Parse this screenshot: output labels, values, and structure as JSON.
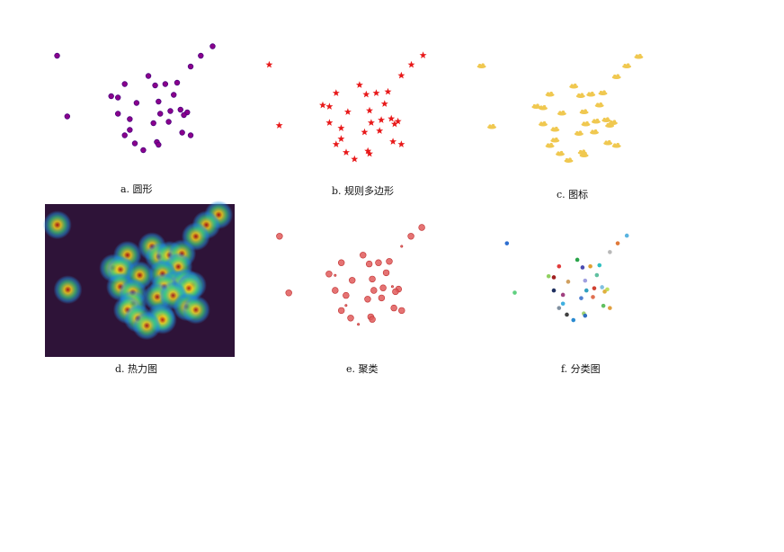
{
  "captions": {
    "a": "a.  圆形",
    "b": "b. 规则多边形",
    "c": "c. 图标",
    "d": "d. 热力图",
    "e": "e. 聚类",
    "f": "f. 分类图"
  },
  "colors": {
    "circle": "#8b008b",
    "circle_stroke": "#4b0082",
    "star": "#e8191a",
    "icon": "#f0c850",
    "cluster": "#e05a5a",
    "heatmap_bg": "#2e1338"
  },
  "chart_data": {
    "type": "scatter",
    "title": "",
    "points": [
      [
        0.04,
        0.12
      ],
      [
        0.96,
        0.05
      ],
      [
        0.89,
        0.12
      ],
      [
        0.83,
        0.2
      ],
      [
        0.58,
        0.27
      ],
      [
        0.44,
        0.33
      ],
      [
        0.62,
        0.34
      ],
      [
        0.68,
        0.33
      ],
      [
        0.75,
        0.32
      ],
      [
        0.36,
        0.42
      ],
      [
        0.4,
        0.43
      ],
      [
        0.73,
        0.41
      ],
      [
        0.51,
        0.47
      ],
      [
        0.64,
        0.46
      ],
      [
        0.1,
        0.57
      ],
      [
        0.4,
        0.55
      ],
      [
        0.71,
        0.53
      ],
      [
        0.77,
        0.52
      ],
      [
        0.81,
        0.54
      ],
      [
        0.79,
        0.56
      ],
      [
        0.65,
        0.55
      ],
      [
        0.47,
        0.59
      ],
      [
        0.61,
        0.62
      ],
      [
        0.7,
        0.61
      ],
      [
        0.47,
        0.67
      ],
      [
        0.78,
        0.69
      ],
      [
        0.44,
        0.71
      ],
      [
        0.83,
        0.71
      ],
      [
        0.5,
        0.77
      ],
      [
        0.63,
        0.76
      ],
      [
        0.64,
        0.78
      ],
      [
        0.55,
        0.82
      ]
    ],
    "categories": [
      "#2e6fd0",
      "#5ab4e0",
      "#e07a3a",
      "#b8b8b8",
      "#2aa44a",
      "#e03a3a",
      "#4a4ab0",
      "#e0a030",
      "#30c0c0",
      "#90d060",
      "#a02020",
      "#60c0a0",
      "#d0a060",
      "#a0a0e0",
      "#60d080",
      "#203060",
      "#d04030",
      "#80c0e0",
      "#c0e060",
      "#e0b040",
      "#30a0c0",
      "#a04080",
      "#5080d0",
      "#e07050",
      "#40b0e0",
      "#60c060",
      "#8090a0",
      "#e0a040",
      "#404040",
      "#a0d070",
      "#3070c0",
      "#2a8ad0"
    ]
  }
}
